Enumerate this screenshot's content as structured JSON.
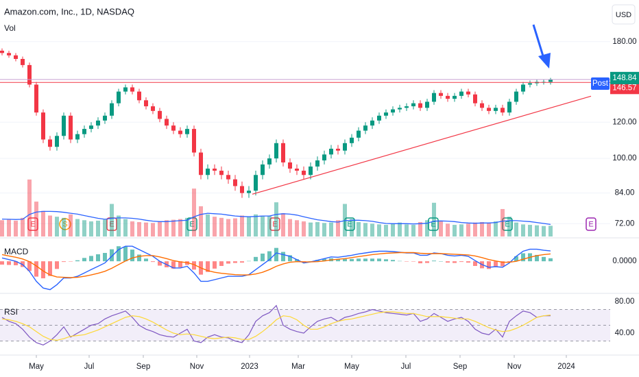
{
  "chart_data": [
    {
      "type": "candlestick",
      "title": "Amazon.com, Inc., 1D, NASDAQ",
      "currency": "USD",
      "up_color": "#089981",
      "down_color": "#f23645",
      "open": [
        172,
        170,
        168,
        165,
        160,
        145,
        126,
        110,
        106,
        112,
        124,
        110,
        113,
        116,
        118,
        121,
        124,
        132,
        140,
        143,
        140,
        134,
        130,
        127,
        122,
        118,
        115,
        113,
        116,
        103,
        92,
        95,
        94,
        92,
        90,
        87,
        84,
        85,
        92,
        97,
        100,
        108,
        98,
        95,
        94,
        92,
        96,
        99,
        102,
        105,
        104,
        108,
        111,
        115,
        118,
        121,
        124,
        126,
        128,
        129,
        130,
        132,
        129,
        133,
        139,
        137,
        135,
        137,
        140,
        138,
        132,
        129,
        127,
        129,
        126,
        133,
        140,
        145,
        146,
        147,
        147
      ],
      "high": [
        174,
        172,
        170,
        167,
        162,
        147,
        128,
        112,
        114,
        126,
        126,
        115,
        118,
        120,
        123,
        126,
        134,
        142,
        145,
        145,
        142,
        136,
        132,
        129,
        124,
        120,
        117,
        118,
        118,
        105,
        97,
        97,
        96,
        94,
        92,
        89,
        87,
        94,
        99,
        102,
        110,
        110,
        100,
        97,
        96,
        98,
        101,
        104,
        107,
        107,
        110,
        113,
        117,
        120,
        123,
        126,
        128,
        130,
        131,
        132,
        134,
        134,
        135,
        141,
        141,
        139,
        139,
        142,
        142,
        140,
        134,
        131,
        131,
        131,
        135,
        142,
        147,
        148,
        149,
        149,
        150
      ],
      "low": [
        168,
        166,
        163,
        158,
        143,
        124,
        108,
        104,
        104,
        110,
        108,
        108,
        111,
        114,
        116,
        119,
        122,
        130,
        138,
        138,
        132,
        128,
        125,
        120,
        116,
        113,
        111,
        111,
        101,
        90,
        90,
        92,
        90,
        88,
        85,
        82,
        82,
        83,
        90,
        95,
        98,
        96,
        93,
        92,
        90,
        90,
        94,
        97,
        100,
        102,
        102,
        106,
        109,
        113,
        116,
        119,
        122,
        124,
        126,
        127,
        128,
        127,
        127,
        131,
        135,
        133,
        133,
        135,
        136,
        130,
        127,
        125,
        125,
        124,
        124,
        131,
        138,
        143,
        144,
        145,
        145
      ],
      "close": [
        170,
        168,
        165,
        160,
        145,
        126,
        110,
        106,
        112,
        124,
        110,
        113,
        116,
        118,
        121,
        124,
        132,
        140,
        143,
        140,
        134,
        130,
        127,
        122,
        118,
        115,
        113,
        116,
        103,
        92,
        95,
        94,
        92,
        90,
        87,
        84,
        85,
        92,
        97,
        100,
        108,
        98,
        95,
        94,
        92,
        96,
        99,
        102,
        105,
        104,
        108,
        111,
        115,
        118,
        121,
        124,
        126,
        128,
        129,
        130,
        132,
        129,
        133,
        139,
        137,
        135,
        137,
        140,
        138,
        132,
        129,
        127,
        129,
        126,
        133,
        140,
        145,
        146,
        147,
        147,
        148.84
      ],
      "xlim": [
        -0.3,
        88.7
      ],
      "ylim": [
        67.5,
        222
      ],
      "log_scale": true,
      "yticks": [
        {
          "value": 180,
          "label": "180.00"
        },
        {
          "value": 120,
          "label": "120.00"
        },
        {
          "value": 100,
          "label": "100.00"
        },
        {
          "value": 84,
          "label": "84.00"
        },
        {
          "value": 72,
          "label": "72.00"
        }
      ],
      "price_lines": [
        {
          "value": 148.77,
          "label": "Post",
          "color": "#2962ff",
          "line_color": "#c79fd0"
        },
        {
          "value": 146.57,
          "color": "#f23645",
          "line_color": "#f23645"
        }
      ],
      "trendline": {
        "x": [
          36.5,
          85.9
        ],
        "y": [
          83.5,
          136.8
        ],
        "color": "#f23645"
      },
      "events": [
        {
          "x": 4.5,
          "label": "E",
          "color": "#f23645"
        },
        {
          "x": 9.2,
          "label": "S",
          "color": "#ff9800",
          "shape": "circle"
        },
        {
          "x": 16,
          "label": "E",
          "color": "#f23645"
        },
        {
          "x": 27.7,
          "label": "E",
          "color": "#089981"
        },
        {
          "x": 39.8,
          "label": "E",
          "color": "#f23645"
        },
        {
          "x": 50.7,
          "label": "E",
          "color": "#089981"
        },
        {
          "x": 62.9,
          "label": "E",
          "color": "#089981"
        },
        {
          "x": 73.7,
          "label": "E",
          "color": "#089981"
        },
        {
          "x": 85.9,
          "label": "E",
          "color": "#9c27b0"
        }
      ]
    },
    {
      "type": "volume",
      "title": "Vol",
      "ylim": [
        0,
        280
      ],
      "values": [
        70,
        72,
        68,
        80,
        245,
        150,
        110,
        90,
        85,
        80,
        95,
        75,
        70,
        65,
        68,
        72,
        140,
        90,
        75,
        65,
        62,
        60,
        58,
        65,
        70,
        72,
        75,
        80,
        206,
        130,
        95,
        85,
        80,
        75,
        78,
        90,
        85,
        95,
        88,
        90,
        147,
        100,
        75,
        70,
        65,
        60,
        62,
        58,
        60,
        70,
        140,
        75,
        62,
        58,
        55,
        52,
        50,
        55,
        60,
        52,
        50,
        62,
        70,
        145,
        65,
        55,
        50,
        52,
        55,
        60,
        62,
        58,
        65,
        118,
        85,
        60,
        52,
        50,
        48,
        45,
        46
      ],
      "ma_color": "#2962ff",
      "ma_values": [
        75,
        74,
        73,
        74,
        95,
        105,
        108,
        108,
        107,
        104,
        100,
        96,
        90,
        84,
        78,
        74,
        78,
        80,
        80,
        78,
        75,
        70,
        66,
        64,
        64,
        66,
        68,
        70,
        85,
        95,
        100,
        98,
        96,
        92,
        88,
        86,
        85,
        86,
        88,
        88,
        95,
        98,
        96,
        92,
        85,
        78,
        72,
        68,
        64,
        62,
        68,
        70,
        70,
        68,
        65,
        60,
        56,
        55,
        55,
        55,
        54,
        55,
        57,
        66,
        67,
        66,
        64,
        60,
        58,
        57,
        58,
        58,
        60,
        66,
        68,
        68,
        66,
        64,
        60,
        56,
        52
      ]
    },
    {
      "type": "macd",
      "title": "MACD",
      "ylim": [
        -9.2,
        6.6
      ],
      "yticks": [
        {
          "value": 0,
          "label": "0.0000"
        }
      ],
      "hist_up_color": "#26a69a",
      "hist_down_color": "#ff5252",
      "histogram": [
        -1,
        -1.1,
        -1.2,
        -1.7,
        -2.9,
        -4.6,
        -5.1,
        -4.4,
        -2.3,
        -0.2,
        -0.1,
        0.3,
        1,
        1.6,
        2.1,
        2.5,
        3.6,
        4.5,
        4.4,
        3.5,
        2,
        0.8,
        -0.2,
        -1.3,
        -1.8,
        -2.2,
        -1.8,
        -1.1,
        -2.5,
        -4,
        -3.2,
        -2.2,
        -1.4,
        -0.7,
        -0.5,
        -0.4,
        0.1,
        1.3,
        2.3,
        3,
        4,
        2.8,
        1.8,
        0.6,
        -0.3,
        0,
        0.4,
        0.7,
        0.9,
        0.6,
        0.7,
        0.7,
        0.8,
        0.8,
        0.8,
        0.8,
        0.6,
        0.4,
        0.1,
        -0.1,
        -0.1,
        -0.6,
        -0.5,
        0.2,
        0,
        -0.4,
        -0.5,
        -0.2,
        -0.4,
        -1.4,
        -2.1,
        -2.3,
        -1.7,
        -1.5,
        -0.2,
        1.5,
        2.4,
        2.4,
        1.9,
        1.3,
        0.9
      ],
      "series": [
        {
          "color": "#2962ff",
          "values": [
            1,
            0.5,
            0,
            -1,
            -3,
            -6,
            -8,
            -8.5,
            -7,
            -5,
            -5,
            -4.5,
            -3.5,
            -2.5,
            -1.5,
            -0.5,
            1.5,
            3.5,
            4.5,
            4.5,
            3.5,
            2.5,
            1.5,
            0,
            -1,
            -2,
            -2,
            -1.5,
            -3.5,
            -6,
            -6,
            -5.5,
            -5,
            -4.5,
            -4.5,
            -4.5,
            -4,
            -2.5,
            -1,
            0.5,
            2.5,
            2,
            1.5,
            0.5,
            -0.5,
            -0.2,
            0.3,
            0.8,
            1.3,
            1.2,
            1.5,
            1.8,
            2.2,
            2.5,
            2.8,
            3,
            3,
            2.9,
            2.7,
            2.5,
            2.5,
            1.8,
            1.8,
            2.5,
            2.3,
            1.8,
            1.6,
            1.8,
            1.5,
            0.2,
            -1,
            -1.8,
            -1.6,
            -1.8,
            -0.5,
            1.5,
            3,
            3.6,
            3.6,
            3.3,
            3.1
          ]
        },
        {
          "color": "#ff6d00",
          "values": [
            2,
            1.6,
            1.2,
            0.7,
            -0.1,
            -1.4,
            -2.9,
            -4.1,
            -4.7,
            -4.8,
            -4.9,
            -4.8,
            -4.5,
            -4.1,
            -3.6,
            -3,
            -2.1,
            -1,
            0.1,
            1,
            1.5,
            1.7,
            1.7,
            1.3,
            0.8,
            0.2,
            -0.2,
            -0.4,
            -1,
            -2,
            -2.8,
            -3.3,
            -3.6,
            -3.8,
            -4,
            -4.1,
            -4.1,
            -3.8,
            -3.3,
            -2.5,
            -1.5,
            -0.8,
            -0.3,
            -0.1,
            -0.2,
            -0.2,
            -0.1,
            0.1,
            0.4,
            0.6,
            0.8,
            1.1,
            1.4,
            1.7,
            2,
            2.2,
            2.4,
            2.5,
            2.6,
            2.6,
            2.6,
            2.4,
            2.3,
            2.3,
            2.3,
            2.2,
            2.1,
            2,
            1.9,
            1.6,
            1.1,
            0.5,
            0.1,
            -0.3,
            -0.3,
            0,
            0.6,
            1.2,
            1.7,
            2,
            2.2
          ]
        }
      ]
    },
    {
      "type": "rsi",
      "title": "RSI",
      "ylim": [
        14.8,
        88.7
      ],
      "yticks": [
        {
          "value": 80,
          "label": "80.00"
        },
        {
          "value": 40,
          "label": "40.00"
        }
      ],
      "levels": [
        70,
        50,
        30
      ],
      "band": [
        30,
        70
      ],
      "band_color": "#7e57c2",
      "xlim": [
        -0.3,
        88.7
      ],
      "xticks": [
        {
          "value": 5,
          "label": "May"
        },
        {
          "value": 12.7,
          "label": "Jul"
        },
        {
          "value": 20.6,
          "label": "Sep"
        },
        {
          "value": 28.4,
          "label": "Nov"
        },
        {
          "value": 36.1,
          "label": "2023"
        },
        {
          "value": 43.2,
          "label": "Mar"
        },
        {
          "value": 51,
          "label": "May"
        },
        {
          "value": 58.9,
          "label": "Jul"
        },
        {
          "value": 66.8,
          "label": "Sep"
        },
        {
          "value": 74.7,
          "label": "Nov"
        },
        {
          "value": 82.3,
          "label": "2024"
        }
      ],
      "series": [
        {
          "color": "#7e57c2",
          "values": [
            60,
            55,
            52,
            45,
            35,
            28,
            25,
            30,
            38,
            48,
            35,
            40,
            45,
            50,
            52,
            58,
            62,
            65,
            68,
            60,
            50,
            45,
            42,
            38,
            36,
            35,
            40,
            45,
            30,
            28,
            35,
            38,
            35,
            34,
            30,
            28,
            38,
            55,
            62,
            66,
            75,
            50,
            45,
            42,
            40,
            48,
            55,
            58,
            60,
            55,
            60,
            62,
            65,
            67,
            70,
            68,
            66,
            65,
            64,
            63,
            65,
            55,
            58,
            65,
            60,
            55,
            58,
            60,
            55,
            45,
            40,
            38,
            45,
            35,
            55,
            62,
            68,
            66,
            60,
            62,
            62
          ]
        },
        {
          "color": "#fdd835",
          "values": [
            58,
            57,
            55,
            52,
            48,
            42,
            36,
            32,
            31,
            33,
            36,
            37,
            38,
            41,
            44,
            48,
            52,
            56,
            60,
            62,
            61,
            58,
            54,
            49,
            44,
            40,
            38,
            39,
            38,
            36,
            34,
            33,
            34,
            35,
            34,
            32,
            32,
            36,
            42,
            49,
            57,
            62,
            61,
            57,
            50,
            45,
            45,
            48,
            52,
            55,
            57,
            58,
            60,
            62,
            64,
            66,
            67,
            67,
            66,
            65,
            65,
            63,
            61,
            61,
            61,
            60,
            59,
            58,
            58,
            55,
            51,
            47,
            44,
            42,
            43,
            46,
            50,
            55,
            60,
            62,
            63
          ]
        }
      ]
    }
  ]
}
